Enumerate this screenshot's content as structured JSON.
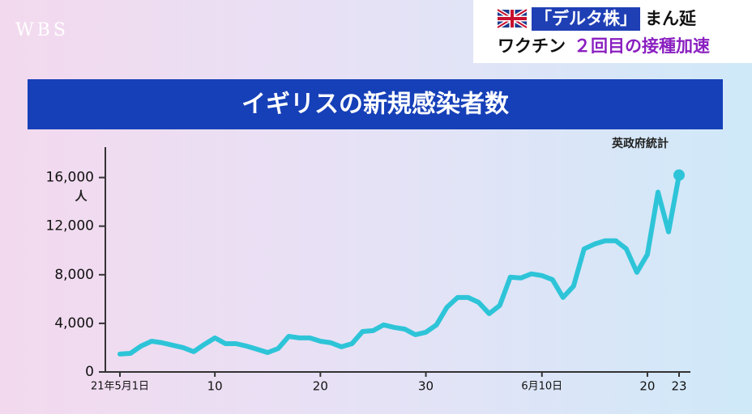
{
  "header": {
    "logo": "WBS",
    "headline": [
      [
        "「デルタ株」",
        "まん延"
      ],
      [
        "ワクチン",
        "２回目の接種加速"
      ]
    ]
  },
  "chart_data": {
    "type": "line",
    "title": "イギリスの新規感染者数",
    "source": "英政府統計",
    "y_label": "人",
    "categories": [
      "21年5月1日",
      null,
      null,
      null,
      null,
      null,
      null,
      null,
      null,
      "10",
      null,
      null,
      null,
      null,
      null,
      null,
      null,
      null,
      null,
      "20",
      null,
      null,
      null,
      null,
      null,
      null,
      null,
      null,
      null,
      "30",
      null,
      null,
      null,
      null,
      null,
      null,
      null,
      null,
      null,
      null,
      "6月10日",
      null,
      null,
      null,
      null,
      null,
      null,
      null,
      null,
      null,
      "20",
      null,
      null,
      "23"
    ],
    "series": [
      {
        "color": "#2ec4d8",
        "values": [
          1470,
          1530,
          2130,
          2530,
          2400,
          2200,
          2000,
          1670,
          2270,
          2800,
          2330,
          2330,
          2130,
          1870,
          1600,
          1930,
          2930,
          2800,
          2800,
          2530,
          2400,
          2070,
          2330,
          3330,
          3400,
          3870,
          3670,
          3530,
          3070,
          3270,
          3870,
          5330,
          6130,
          6130,
          5730,
          4800,
          5470,
          7800,
          7730,
          8070,
          7930,
          7600,
          6130,
          7070,
          10130,
          10530,
          10800,
          10800,
          10130,
          8200,
          9670,
          14800,
          11530,
          16200
        ]
      }
    ],
    "ylim": [
      0,
      18500
    ],
    "yticks": [
      0,
      {
        "value": 4000,
        "label": "4,000"
      },
      {
        "value": 8000,
        "label": "8,000"
      },
      {
        "value": 12000,
        "label": "12,000"
      },
      {
        "value": 16000,
        "label": "16,000"
      }
    ]
  }
}
